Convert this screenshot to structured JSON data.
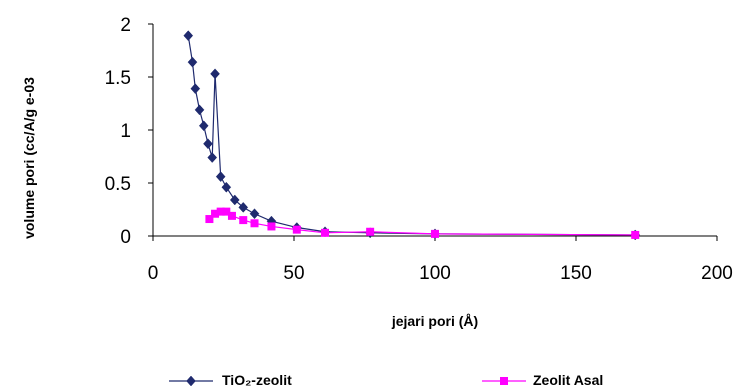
{
  "chart_data": {
    "type": "scatter",
    "title": "",
    "xlabel": "jejari pori (Å)",
    "ylabel": "volume pori (cc/A/g e-03",
    "xlim": [
      0,
      200
    ],
    "ylim": [
      0,
      2
    ],
    "x_ticks": [
      "0",
      "50",
      "100",
      "150",
      "200"
    ],
    "y_ticks": [
      "0",
      "0.5",
      "1",
      "1.5",
      "2"
    ],
    "grid": false,
    "legend_position": "bottom",
    "series": [
      {
        "name": "TiO₂-zeolit",
        "color": "#1f2a6e",
        "marker": "diamond",
        "x": [
          12.5,
          14,
          15,
          16.5,
          18,
          19.5,
          21,
          22,
          24,
          26,
          29,
          32,
          36,
          42,
          51,
          61,
          77,
          100,
          171
        ],
        "y": [
          1.89,
          1.64,
          1.39,
          1.19,
          1.04,
          0.87,
          0.74,
          1.53,
          0.56,
          0.46,
          0.34,
          0.27,
          0.21,
          0.14,
          0.08,
          0.04,
          0.03,
          0.02,
          0.01
        ]
      },
      {
        "name": "Zeolit Asal",
        "color": "#ff00ff",
        "marker": "square",
        "x": [
          20,
          22,
          24,
          26,
          28,
          32,
          36,
          42,
          51,
          61,
          77,
          100,
          171
        ],
        "y": [
          0.16,
          0.21,
          0.23,
          0.23,
          0.19,
          0.15,
          0.12,
          0.09,
          0.06,
          0.03,
          0.04,
          0.02,
          0.01
        ]
      }
    ]
  }
}
